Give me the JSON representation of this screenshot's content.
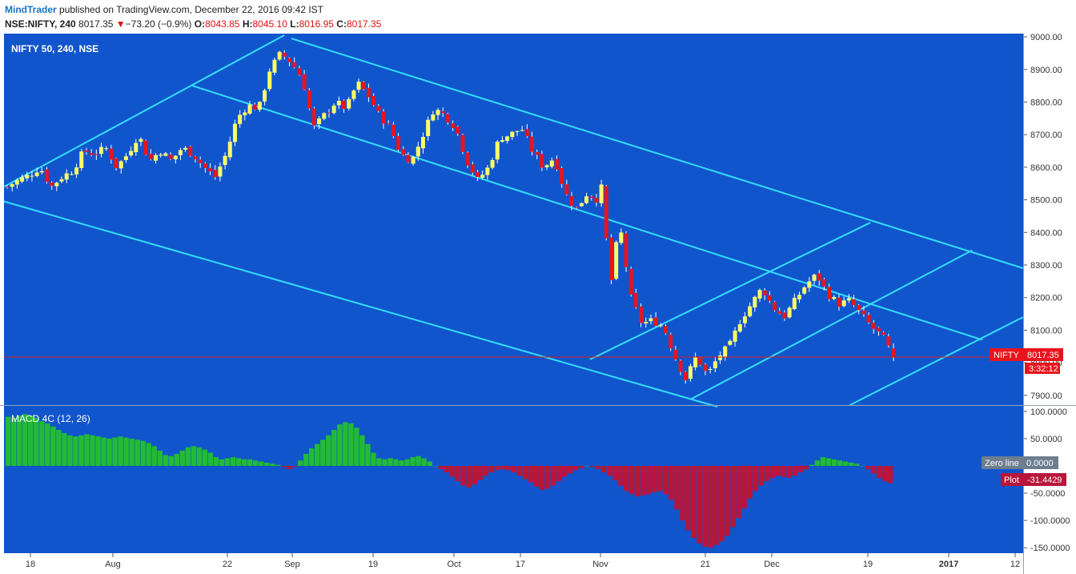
{
  "header": {
    "author": "MindTrader",
    "published_text": "published on TradingView.com, December 22, 2016 09:42 IST",
    "symbol": "NSE:NIFTY, 240",
    "last": "8017.35",
    "change_arrow": "▼",
    "change": "−73.20 (−0.9%)",
    "o_label": "O:",
    "o": "8043.85",
    "h_label": "H:",
    "h": "8045.10",
    "l_label": "L:",
    "l": "8016.95",
    "c_label": "C:",
    "c": "8017.35"
  },
  "colors": {
    "background": "#1155cc",
    "channel": "#33dfff",
    "bull_candle": "#ffff66",
    "bear_candle": "#e8141e",
    "macd_pos": "#22bb33",
    "macd_neg": "#b8163a",
    "price_line": "#d62020"
  },
  "chart_data": [
    {
      "type": "candlestick",
      "title": "NIFTY 50, 240, NSE",
      "ylim": [
        7870,
        9010
      ],
      "y_ticks": [
        "9000.00",
        "8900.00",
        "8800.00",
        "8700.00",
        "8600.00",
        "8500.00",
        "8400.00",
        "8300.00",
        "8200.00",
        "8100.00",
        "8000.00",
        "7900.00"
      ],
      "x_ticks": [
        "18",
        "Aug",
        "22",
        "Sep",
        "19",
        "Oct",
        "17",
        "Nov",
        "21",
        "Dec",
        "19",
        "2017",
        "12"
      ],
      "last_price_label": "NIFTY",
      "last_price": "8017.35",
      "countdown": "3:32:12",
      "close_path": [
        [
          0,
          8540
        ],
        [
          10,
          8560
        ],
        [
          20,
          8575
        ],
        [
          30,
          8600
        ],
        [
          40,
          8540
        ],
        [
          50,
          8570
        ],
        [
          60,
          8590
        ],
        [
          70,
          8650
        ],
        [
          80,
          8640
        ],
        [
          90,
          8660
        ],
        [
          100,
          8600
        ],
        [
          110,
          8640
        ],
        [
          120,
          8700
        ],
        [
          130,
          8620
        ],
        [
          140,
          8650
        ],
        [
          150,
          8620
        ],
        [
          160,
          8660
        ],
        [
          170,
          8640
        ],
        [
          180,
          8600
        ],
        [
          190,
          8570
        ],
        [
          200,
          8640
        ],
        [
          210,
          8750
        ],
        [
          220,
          8790
        ],
        [
          230,
          8780
        ],
        [
          240,
          8900
        ],
        [
          250,
          8950
        ],
        [
          260,
          8920
        ],
        [
          270,
          8870
        ],
        [
          280,
          8720
        ],
        [
          290,
          8760
        ],
        [
          300,
          8800
        ],
        [
          310,
          8780
        ],
        [
          320,
          8860
        ],
        [
          330,
          8820
        ],
        [
          340,
          8760
        ],
        [
          350,
          8720
        ],
        [
          360,
          8640
        ],
        [
          370,
          8620
        ],
        [
          380,
          8700
        ],
        [
          390,
          8780
        ],
        [
          400,
          8760
        ],
        [
          410,
          8720
        ],
        [
          420,
          8620
        ],
        [
          430,
          8560
        ],
        [
          440,
          8600
        ],
        [
          450,
          8690
        ],
        [
          460,
          8700
        ],
        [
          470,
          8720
        ],
        [
          480,
          8650
        ],
        [
          490,
          8600
        ],
        [
          500,
          8630
        ],
        [
          510,
          8520
        ],
        [
          520,
          8470
        ],
        [
          530,
          8520
        ],
        [
          540,
          8500
        ],
        [
          545,
          8560
        ],
        [
          550,
          8200
        ],
        [
          555,
          8330
        ],
        [
          560,
          8420
        ],
        [
          570,
          8200
        ],
        [
          580,
          8120
        ],
        [
          590,
          8130
        ],
        [
          600,
          8110
        ],
        [
          610,
          8020
        ],
        [
          620,
          7950
        ],
        [
          630,
          8020
        ],
        [
          640,
          7960
        ],
        [
          650,
          8020
        ],
        [
          660,
          8050
        ],
        [
          670,
          8130
        ],
        [
          680,
          8180
        ],
        [
          690,
          8230
        ],
        [
          700,
          8170
        ],
        [
          710,
          8140
        ],
        [
          720,
          8190
        ],
        [
          730,
          8240
        ],
        [
          740,
          8270
        ],
        [
          750,
          8210
        ],
        [
          760,
          8180
        ],
        [
          770,
          8190
        ],
        [
          780,
          8150
        ],
        [
          790,
          8110
        ],
        [
          800,
          8080
        ],
        [
          810,
          8017.35
        ]
      ],
      "candles_approx": 180
    },
    {
      "type": "bar",
      "title": "MACD 4C (12, 26)",
      "ylim": [
        -160,
        110
      ],
      "y_ticks": [
        "100.0000",
        "50.0000",
        "0.0000",
        "-50.0000",
        "-100.0000",
        "-150.0000"
      ],
      "zero_label": "Zero line",
      "zero_value": "0.0000",
      "plot_label": "Plot",
      "plot_value": "-31.4429",
      "values": [
        90,
        88,
        92,
        95,
        92,
        88,
        82,
        78,
        72,
        66,
        60,
        56,
        54,
        56,
        58,
        56,
        54,
        52,
        50,
        52,
        54,
        52,
        50,
        48,
        46,
        42,
        36,
        28,
        20,
        18,
        22,
        28,
        34,
        36,
        34,
        30,
        24,
        16,
        12,
        14,
        16,
        14,
        12,
        12,
        10,
        8,
        6,
        4,
        2,
        -2,
        -6,
        -2,
        10,
        22,
        32,
        40,
        48,
        56,
        66,
        76,
        80,
        78,
        70,
        56,
        40,
        24,
        14,
        12,
        14,
        12,
        10,
        12,
        16,
        18,
        14,
        8,
        0,
        -6,
        -12,
        -20,
        -28,
        -36,
        -40,
        -34,
        -26,
        -18,
        -12,
        -8,
        -6,
        -8,
        -12,
        -18,
        -24,
        -30,
        -38,
        -44,
        -42,
        -36,
        -28,
        -20,
        -14,
        -8,
        -4,
        0,
        -2,
        -6,
        -12,
        -18,
        -26,
        -36,
        -46,
        -52,
        -56,
        -54,
        -52,
        -48,
        -46,
        -52,
        -62,
        -80,
        -100,
        -118,
        -132,
        -142,
        -148,
        -150,
        -145,
        -138,
        -128,
        -112,
        -96,
        -78,
        -60,
        -46,
        -36,
        -28,
        -22,
        -18,
        -20,
        -22,
        -18,
        -12,
        -6,
        2,
        10,
        16,
        14,
        12,
        10,
        8,
        6,
        4,
        0,
        -6,
        -14,
        -22,
        -28,
        -31.44
      ]
    }
  ]
}
